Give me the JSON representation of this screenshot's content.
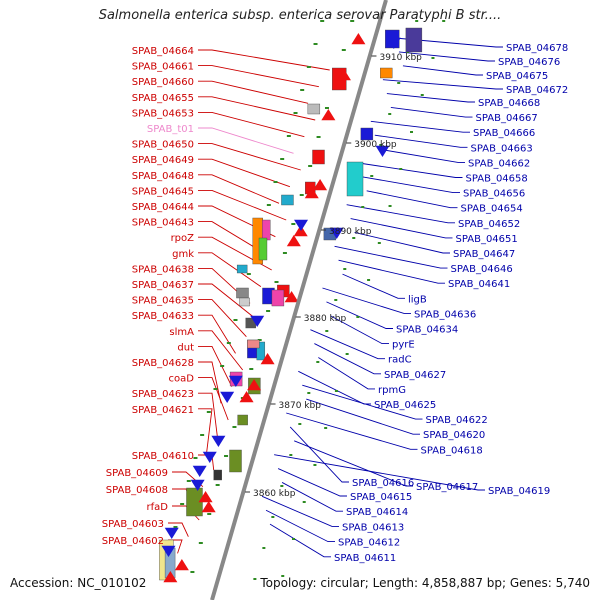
{
  "title": "Salmonella enterica subsp. enterica serovar Paratyphi B str....",
  "footer": {
    "accession": "Accession: NC_010102",
    "summary": "Topology: circular; Length: 4,858,887 bp; Genes: 5,740"
  },
  "colors": {
    "left_label": "#cc0000",
    "right_label": "#0000aa",
    "rna_label": "#ee88cc",
    "backbone": "#888888",
    "forward_arrow": "#ee1111",
    "reverse_arrow": "#1a1ad6"
  },
  "kbp_labels": [
    "3910 kbp",
    "3900 kbp",
    "3890 kbp",
    "3880 kbp",
    "3870 kbp",
    "3860 kbp"
  ],
  "left_labels": [
    "SPAB_04664",
    "SPAB_04661",
    "SPAB_04660",
    "SPAB_04655",
    "SPAB_04653",
    "SPAB_t01",
    "SPAB_04650",
    "SPAB_04649",
    "SPAB_04648",
    "SPAB_04645",
    "SPAB_04644",
    "SPAB_04643",
    "rpoZ",
    "gmk",
    "SPAB_04638",
    "SPAB_04637",
    "SPAB_04635",
    "SPAB_04633",
    "slmA",
    "dut",
    "SPAB_04628",
    "coaD",
    "SPAB_04623",
    "SPAB_04621",
    "SPAB_04610",
    "SPAB_04609",
    "SPAB_04608",
    "rfaD",
    "SPAB_04603",
    "SPAB_04602"
  ],
  "right_labels": [
    "SPAB_04678",
    "SPAB_04676",
    "SPAB_04675",
    "SPAB_04672",
    "SPAB_04668",
    "SPAB_04667",
    "SPAB_04666",
    "SPAB_04663",
    "SPAB_04662",
    "SPAB_04658",
    "SPAB_04656",
    "SPAB_04654",
    "SPAB_04652",
    "SPAB_04651",
    "SPAB_04647",
    "SPAB_04646",
    "SPAB_04641",
    "ligB",
    "SPAB_04636",
    "SPAB_04634",
    "pyrE",
    "radC",
    "SPAB_04627",
    "rpmG",
    "SPAB_04625",
    "SPAB_04622",
    "SPAB_04620",
    "SPAB_04618",
    "SPAB_04616",
    "SPAB_04617",
    "SPAB_04619",
    "SPAB_04615",
    "SPAB_04614",
    "SPAB_04613",
    "SPAB_04612",
    "SPAB_04611"
  ]
}
